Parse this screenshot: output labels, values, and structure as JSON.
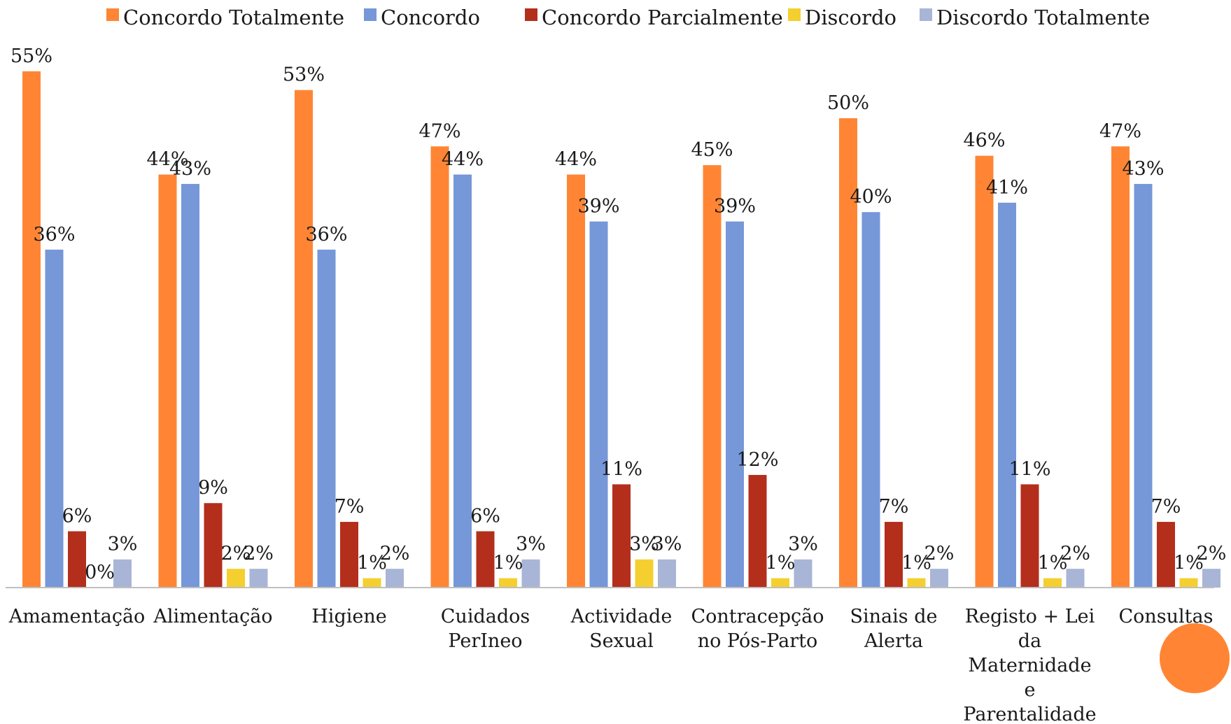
{
  "chart_data": {
    "type": "bar",
    "categories": [
      [
        "Amamentação"
      ],
      [
        "Alimentação"
      ],
      [
        "Higiene"
      ],
      [
        "Cuidados",
        "PerIneo"
      ],
      [
        "Actividade",
        "Sexual"
      ],
      [
        "Contracepção",
        "no Pós-Parto"
      ],
      [
        "Sinais de",
        "Alerta"
      ],
      [
        "Registo + Lei",
        "da",
        "Maternidade",
        "e",
        "Parentalidade"
      ],
      [
        "Consultas"
      ]
    ],
    "series": [
      {
        "name": "Concordo Totalmente",
        "color": "#FF8534",
        "values": [
          55,
          44,
          53,
          47,
          44,
          45,
          50,
          46,
          47
        ]
      },
      {
        "name": "Concordo",
        "color": "#7697D8",
        "values": [
          36,
          43,
          36,
          44,
          39,
          39,
          40,
          41,
          43
        ]
      },
      {
        "name": "Concordo Parcialmente",
        "color": "#B42E1C",
        "values": [
          6,
          9,
          7,
          6,
          11,
          12,
          7,
          11,
          7
        ]
      },
      {
        "name": "Discordo",
        "color": "#F4CF2F",
        "values": [
          0,
          2,
          1,
          1,
          3,
          1,
          1,
          1,
          1
        ]
      },
      {
        "name": "Discordo Totalmente",
        "color": "#A8B5D6",
        "values": [
          3,
          2,
          2,
          3,
          3,
          3,
          2,
          2,
          2
        ]
      }
    ],
    "value_suffix": "%",
    "ylim": [
      0,
      60
    ],
    "legend_position": "top",
    "grid": false,
    "decoration_color": "#FF8534"
  }
}
